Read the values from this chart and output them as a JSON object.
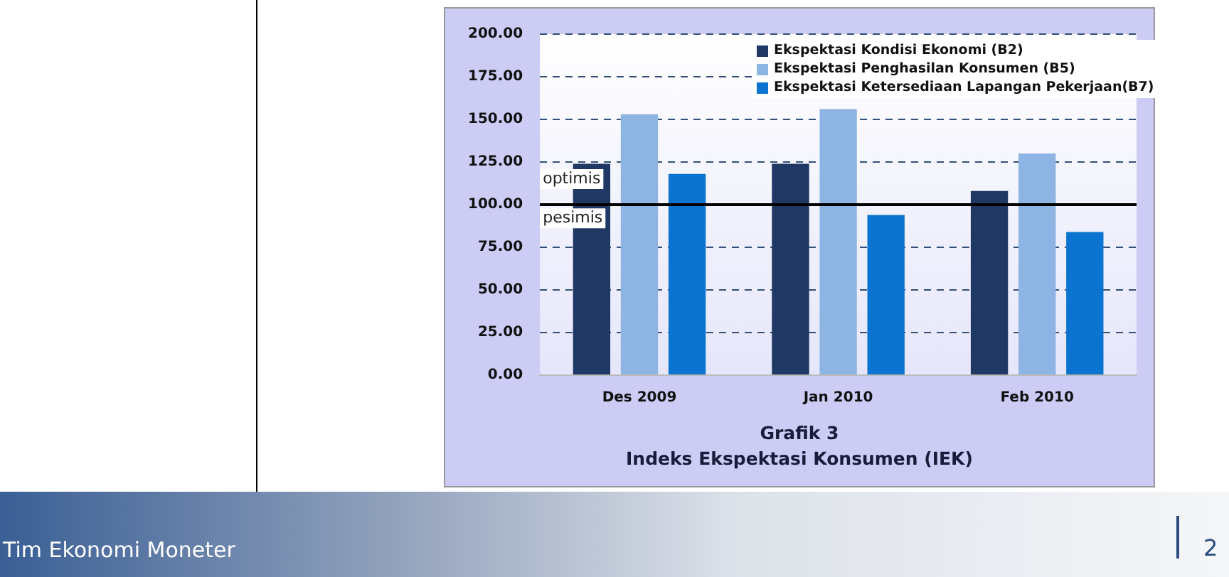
{
  "chart_data": {
    "type": "bar",
    "title": "Grafik 3",
    "subtitle": "Indeks Ekspektasi  Konsumen (IEK)",
    "categories": [
      "Des 2009",
      "Jan 2010",
      "Feb 2010"
    ],
    "series": [
      {
        "name": "Ekspektasi Kondisi Ekonomi (B2)",
        "color": "#1f3864",
        "values": [
          124,
          124,
          108
        ]
      },
      {
        "name": "Ekspektasi Penghasilan Konsumen (B5)",
        "color": "#8eb4e3",
        "values": [
          153,
          156,
          130
        ]
      },
      {
        "name": "Ekspektasi Ketersediaan Lapangan Pekerjaan(B7)",
        "color": "#0a74d0",
        "values": [
          118,
          94,
          84
        ]
      }
    ],
    "ylim": [
      0,
      200
    ],
    "yticks": [
      {
        "value": 0,
        "label": "0.00"
      },
      {
        "value": 25,
        "label": "25.00"
      },
      {
        "value": 50,
        "label": "50.00"
      },
      {
        "value": 75,
        "label": "75.00"
      },
      {
        "value": 100,
        "label": "100.00"
      },
      {
        "value": 125,
        "label": "125.00"
      },
      {
        "value": 150,
        "label": "150.00"
      },
      {
        "value": 175,
        "label": "175.00"
      },
      {
        "value": 200,
        "label": "200.00"
      }
    ],
    "grid": "y",
    "legend": "top right",
    "ref_lines": [
      {
        "axis": "y",
        "value": 100,
        "color": "#000000"
      }
    ],
    "annotations": [
      {
        "text": "optimis",
        "y": 115
      },
      {
        "text": "pesimis",
        "y": 92
      },
      "Tim Ekonomi Moneter",
      "2"
    ]
  }
}
